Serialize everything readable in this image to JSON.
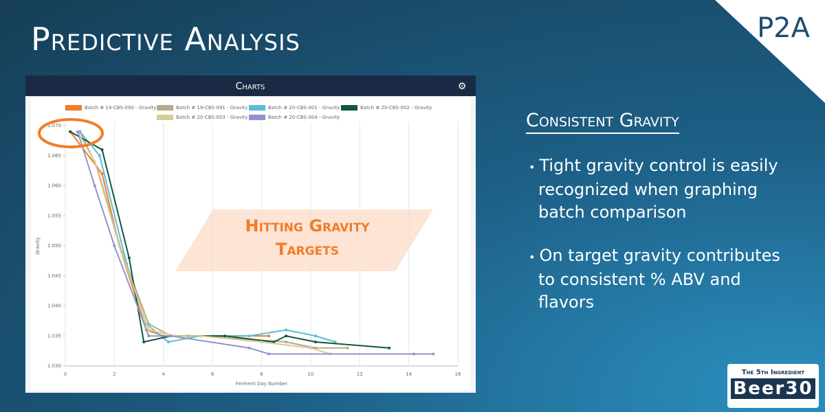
{
  "header": {
    "title": "Predictive Analysis",
    "badge": "P2A"
  },
  "panel": {
    "title": "Charts"
  },
  "chart_data": {
    "type": "line",
    "x_label": "Ferment Day Number",
    "y_label": "Gravity",
    "annotation": "Hitting Gravity Targets",
    "xlim": [
      0,
      16
    ],
    "xticks": [
      0,
      2,
      4,
      6,
      8,
      10,
      12,
      14,
      16
    ],
    "ylim": [
      1.03,
      1.07
    ],
    "yticks": [
      {
        "value": 1.03,
        "label": "1.030"
      },
      {
        "value": 1.035,
        "label": "1.035"
      },
      {
        "value": 1.04,
        "label": "1.040"
      },
      {
        "value": 1.045,
        "label": "1.045"
      },
      {
        "value": 1.05,
        "label": "1.050"
      },
      {
        "value": 1.055,
        "label": "1.055"
      },
      {
        "value": 1.06,
        "label": "1.060"
      },
      {
        "value": 1.065,
        "label": "1.065"
      },
      {
        "value": 1.07,
        "label": "1.070"
      }
    ],
    "grid": true,
    "series": [
      {
        "name": "Batch # 19-CBS-090 - Gravity",
        "color": "#f07d2a",
        "x": [
          0.2,
          1.5,
          2.2,
          3.3,
          4.0,
          5.0,
          8.3
        ],
        "values": [
          1.069,
          1.062,
          1.05,
          1.036,
          1.035,
          1.035,
          1.035
        ]
      },
      {
        "name": "Batch # 19-CBS-091 - Gravity",
        "color": "#b9a98a",
        "x": [
          0.6,
          1.3,
          2.3,
          3.4,
          4.3,
          5.5,
          9.0,
          10.2,
          11.5
        ],
        "values": [
          1.069,
          1.063,
          1.049,
          1.037,
          1.035,
          1.035,
          1.034,
          1.033,
          1.033
        ]
      },
      {
        "name": "Batch # 20-CBS-001 - Gravity",
        "color": "#5bbcd6",
        "x": [
          0.6,
          1.4,
          2.5,
          3.3,
          4.2,
          5.5,
          7.5,
          9.0,
          10.2,
          11.0
        ],
        "values": [
          1.069,
          1.065,
          1.047,
          1.037,
          1.034,
          1.035,
          1.035,
          1.036,
          1.035,
          1.034
        ]
      },
      {
        "name": "Batch # 20-CBS-002 - Gravity",
        "color": "#10573f",
        "x": [
          0.2,
          1.5,
          2.6,
          3.2,
          4.3,
          6.5,
          8.5,
          9.0,
          10.2,
          13.2
        ],
        "values": [
          1.069,
          1.066,
          1.048,
          1.034,
          1.035,
          1.035,
          1.034,
          1.035,
          1.034,
          1.033
        ]
      },
      {
        "name": "Batch # 20-CBS-003 - Gravity",
        "color": "#d6cc96",
        "x": [
          0.5,
          1.2,
          2.2,
          3.4,
          4.5,
          5.5,
          8.0,
          10.0,
          10.8
        ],
        "values": [
          1.069,
          1.064,
          1.05,
          1.036,
          1.035,
          1.035,
          1.034,
          1.033,
          1.032
        ]
      },
      {
        "name": "Batch # 20-CBS-004 - Gravity",
        "color": "#8f95cc",
        "x": [
          0.5,
          1.2,
          2.0,
          3.4,
          4.3,
          7.5,
          8.3,
          14.2,
          15.0
        ],
        "values": [
          1.069,
          1.06,
          1.05,
          1.035,
          1.035,
          1.033,
          1.032,
          1.032,
          1.032
        ]
      }
    ]
  },
  "side": {
    "heading": "Consistent Gravity",
    "bullets": [
      "Tight gravity control is easily recognized when graphing batch comparison",
      "On target gravity contributes to consistent % ABV and flavors"
    ]
  },
  "logo": {
    "top": "The 5th Ingredient",
    "bottom": "Beer30"
  }
}
